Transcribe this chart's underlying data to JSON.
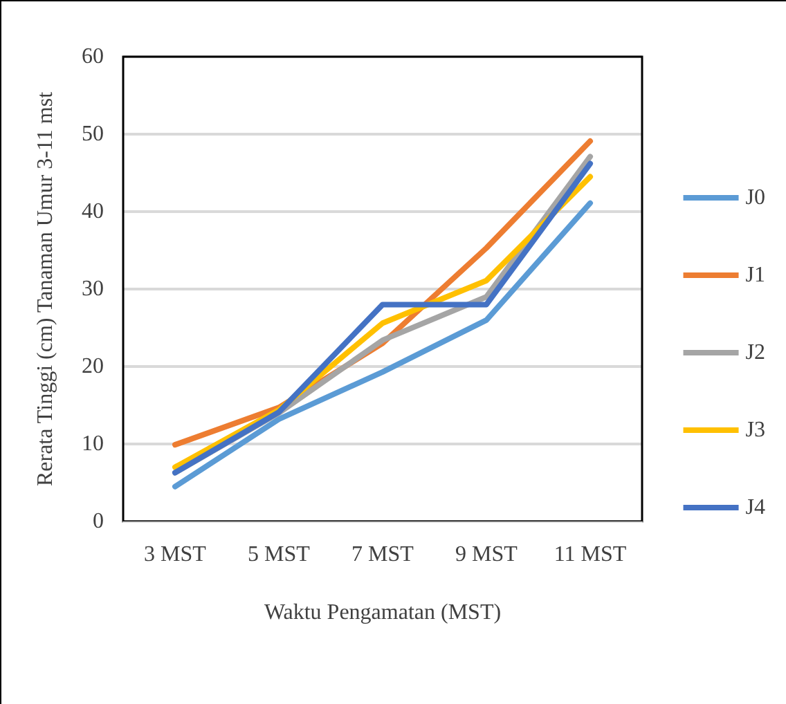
{
  "chart_data": {
    "type": "line",
    "xlabel": "Waktu Pengamatan (MST)",
    "ylabel": "Rerata Tinggi (cm) Tanaman Umur 3-11 mst",
    "categories": [
      "3 MST",
      "5 MST",
      "7 MST",
      "9 MST",
      "11 MST"
    ],
    "series": [
      {
        "name": "J0",
        "color": "#5b9bd5",
        "values": [
          4.5,
          13.2,
          19.3,
          26,
          41.1
        ]
      },
      {
        "name": "J1",
        "color": "#ed7d31",
        "values": [
          9.9,
          14.7,
          23,
          35.3,
          49.1
        ]
      },
      {
        "name": "J2",
        "color": "#a5a5a5",
        "values": [
          6.3,
          14,
          23.4,
          29,
          47.1
        ]
      },
      {
        "name": "J3",
        "color": "#ffc000",
        "values": [
          7,
          14.4,
          25.6,
          31.1,
          44.5
        ]
      },
      {
        "name": "J4",
        "color": "#4472c4",
        "values": [
          6.3,
          14.1,
          28,
          28,
          46.2
        ]
      }
    ],
    "ylim": [
      0,
      60
    ],
    "yticks": [
      0,
      10,
      20,
      30,
      40,
      50,
      60
    ],
    "grid": "y",
    "legend": "right",
    "marker": "none",
    "line_style": "solid"
  }
}
